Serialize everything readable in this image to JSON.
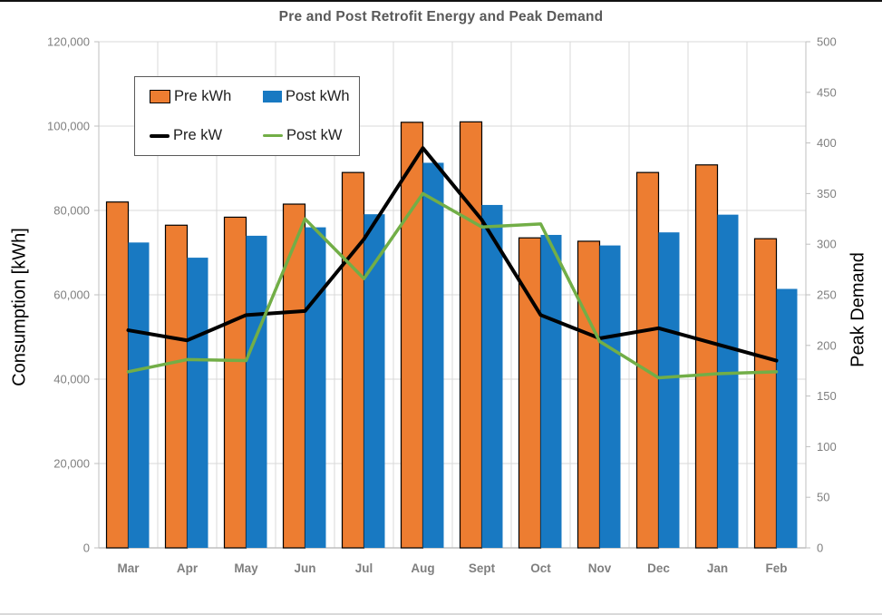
{
  "title": "Pre and Post Retrofit Energy and Peak Demand",
  "colors": {
    "pre_kwh": "#ED7D31",
    "post_kwh": "#1879C2",
    "pre_kw": "#000000",
    "post_kw": "#72AE47",
    "gridline": "#D9D9D9",
    "axis_line": "#BFBFBF",
    "tick_label": "#7F7F7F",
    "title_text": "#595959"
  },
  "legend": {
    "items": [
      {
        "label": "Pre kWh",
        "swatch": "bar",
        "color": "#ED7D31"
      },
      {
        "label": "Post kWh",
        "swatch": "bar",
        "color": "#1879C2"
      },
      {
        "label": "Pre kW",
        "swatch": "line",
        "color": "#000000"
      },
      {
        "label": "Post kW",
        "swatch": "line",
        "color": "#72AE47"
      }
    ]
  },
  "chart_data": {
    "type": "combo-bar-line",
    "categories": [
      "Mar",
      "Apr",
      "May",
      "Jun",
      "Jul",
      "Aug",
      "Sept",
      "Oct",
      "Nov",
      "Dec",
      "Jan",
      "Feb"
    ],
    "bar_series": [
      {
        "name": "Pre kWh",
        "axis": "left",
        "color": "#ED7D31",
        "border": "#000000",
        "values": [
          82000,
          76500,
          78400,
          81500,
          89000,
          100900,
          101000,
          73500,
          72700,
          89000,
          90800,
          73300
        ]
      },
      {
        "name": "Post kWh",
        "axis": "left",
        "color": "#1879C2",
        "values": [
          72400,
          68800,
          74000,
          76000,
          79100,
          91300,
          81300,
          74200,
          71700,
          74800,
          79000,
          61400
        ]
      }
    ],
    "line_series": [
      {
        "name": "Pre kW",
        "axis": "right",
        "color": "#000000",
        "width": 4,
        "values": [
          215,
          205,
          230,
          234,
          305,
          395,
          324,
          230,
          207,
          217,
          201,
          185
        ]
      },
      {
        "name": "Post kW",
        "axis": "right",
        "color": "#72AE47",
        "width": 3.5,
        "values": [
          174,
          186,
          185,
          325,
          266,
          350,
          317,
          320,
          204,
          168,
          172,
          174
        ]
      }
    ],
    "left_axis": {
      "title": "Consumption [kWh]",
      "min": 0,
      "max": 120000,
      "step": 20000,
      "tick_labels": [
        "0",
        "20,000",
        "40,000",
        "60,000",
        "80,000",
        "100,000",
        "120,000"
      ]
    },
    "right_axis": {
      "title": "Peak Demand",
      "min": 0,
      "max": 500,
      "step": 50,
      "tick_labels": [
        "0",
        "50",
        "100",
        "150",
        "200",
        "250",
        "300",
        "350",
        "400",
        "450",
        "500"
      ]
    },
    "grid": true,
    "legend_position": "inside-top-left"
  }
}
